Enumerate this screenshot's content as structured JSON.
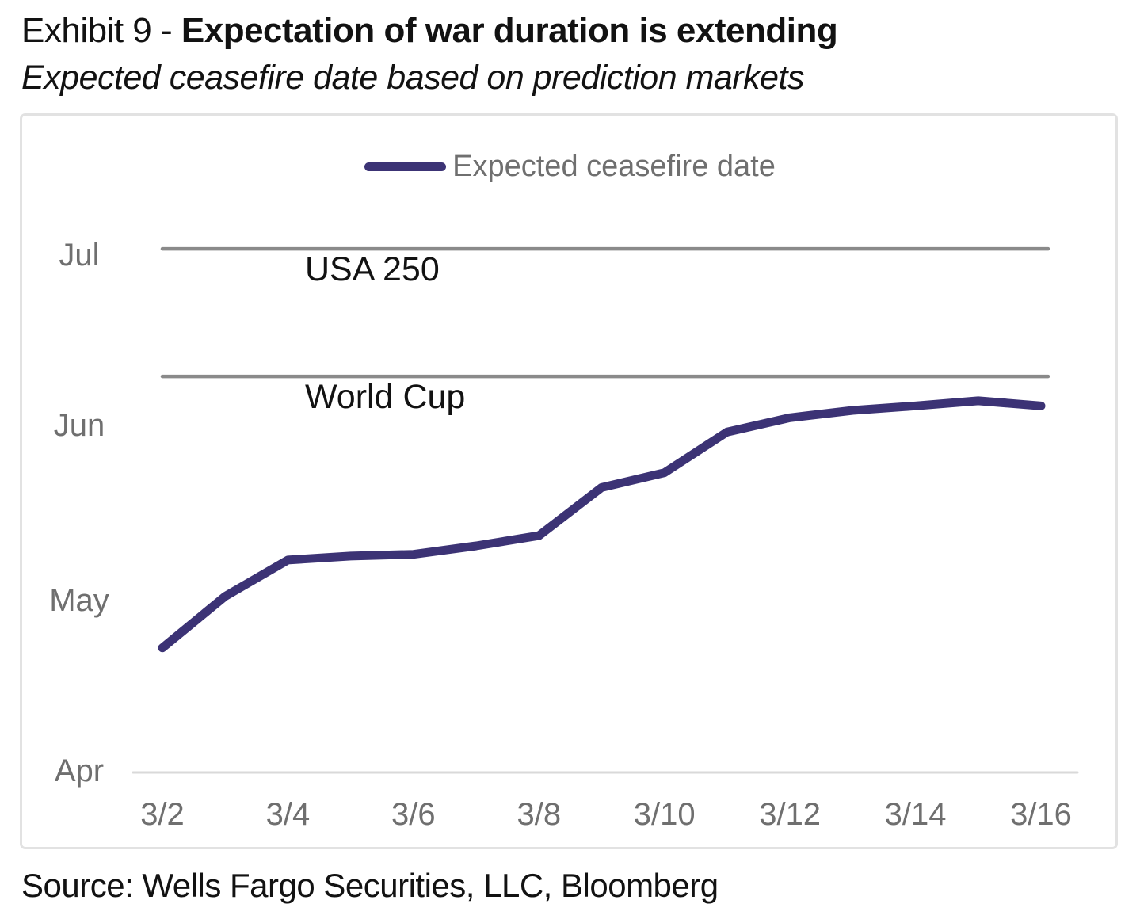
{
  "header": {
    "title_prefix": "Exhibit 9 - ",
    "title_bold": "Expectation of war duration is extending",
    "subtitle": "Expected ceasefire date based on prediction markets"
  },
  "legend": {
    "label": "Expected ceasefire date"
  },
  "footer": {
    "source": "Source: Wells Fargo Securities, LLC, Bloomberg"
  },
  "colors": {
    "line": "#3c3375",
    "reference_line": "#8a8a8a",
    "axis_line": "#d9d9d9",
    "tick_text": "#6f6f6f",
    "label_text": "#121212",
    "border": "#e2e2e2"
  },
  "chart_data": {
    "type": "line",
    "title": "Expectation of war duration is extending",
    "subtitle": "Expected ceasefire date based on prediction markets",
    "grid": false,
    "legend_position": "top-center",
    "x_categories": [
      "3/2",
      "3/3",
      "3/4",
      "3/5",
      "3/6",
      "3/7",
      "3/8",
      "3/9",
      "3/10",
      "3/11",
      "3/12",
      "3/13",
      "3/14",
      "3/15",
      "3/16"
    ],
    "x_tick_labels": [
      "3/2",
      "3/4",
      "3/6",
      "3/8",
      "3/10",
      "3/12",
      "3/14",
      "3/16"
    ],
    "x_tick_indices": [
      0,
      2,
      4,
      6,
      8,
      10,
      12,
      14
    ],
    "y_axis": {
      "unit": "expected ceasefire date",
      "tick_labels": [
        "Apr",
        "May",
        "Jun",
        "Jul"
      ],
      "tick_days_from_apr1": [
        0,
        30,
        61,
        91
      ],
      "range_days_from_apr1": [
        0,
        91
      ]
    },
    "series": [
      {
        "name": "Expected ceasefire date",
        "values_days_from_apr1": [
          21.7,
          30.8,
          37.2,
          37.9,
          38.2,
          39.7,
          41.5,
          50.0,
          52.6,
          59.8,
          62.3,
          63.6,
          64.4,
          65.3,
          64.4
        ],
        "values_approx_dates": [
          "Apr 23",
          "May 1",
          "May 8",
          "May 9",
          "May 9",
          "May 10",
          "May 12",
          "May 21",
          "May 24",
          "May 31",
          "Jun 2",
          "Jun 4",
          "Jun 4",
          "Jun 5",
          "Jun 4"
        ]
      }
    ],
    "annotations": [
      {
        "label": "USA 250",
        "days_from_apr1": 92.1,
        "approx_date": "Jul 2"
      },
      {
        "label": "World Cup",
        "days_from_apr1": 69.6,
        "approx_date": "Jun 9"
      }
    ]
  }
}
